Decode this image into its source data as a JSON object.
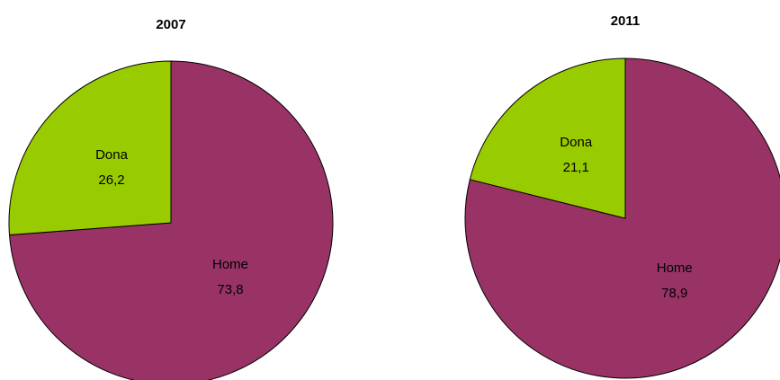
{
  "chart_data": [
    {
      "type": "pie",
      "title": "2007",
      "categories": [
        "Home",
        "Dona"
      ],
      "values": [
        73.8,
        26.2
      ],
      "value_labels": [
        "73,8",
        "26,2"
      ],
      "colors": [
        "#993366",
        "#99cc00"
      ]
    },
    {
      "type": "pie",
      "title": "2011",
      "categories": [
        "Home",
        "Dona"
      ],
      "values": [
        78.9,
        21.1
      ],
      "value_labels": [
        "78,9",
        "21,1"
      ],
      "colors": [
        "#993366",
        "#99cc00"
      ]
    }
  ]
}
